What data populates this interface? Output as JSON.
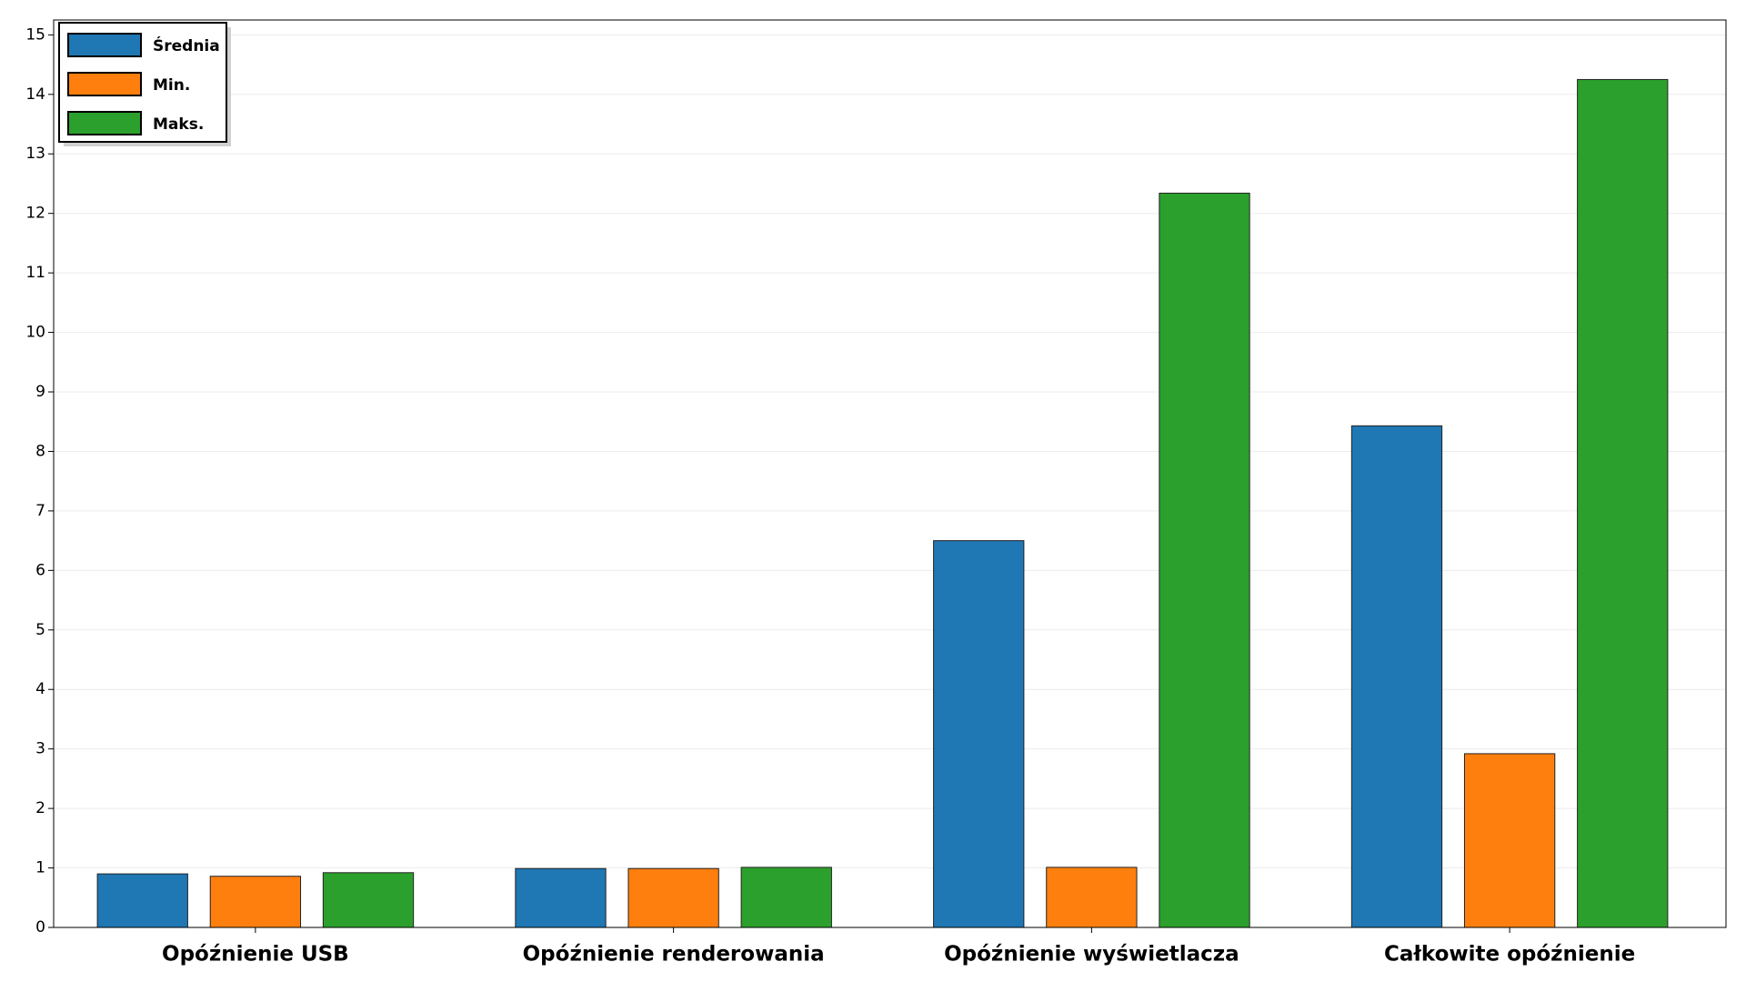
{
  "chart_data": {
    "type": "bar",
    "categories": [
      "Opóźnienie USB",
      "Opóźnienie renderowania",
      "Opóźnienie wyświetlacza",
      "Całkowite opóźnienie"
    ],
    "series": [
      {
        "name": "Średnia",
        "color": "#1f77b4",
        "values": [
          0.9,
          0.99,
          6.5,
          8.43
        ]
      },
      {
        "name": "Min.",
        "color": "#ff7f0e",
        "values": [
          0.86,
          0.99,
          1.01,
          2.92
        ]
      },
      {
        "name": "Maks.",
        "color": "#2ca02c",
        "values": [
          0.92,
          1.01,
          12.34,
          14.25
        ]
      }
    ],
    "ylim": [
      0,
      15.25
    ],
    "yticks": [
      0,
      1,
      2,
      3,
      4,
      5,
      6,
      7,
      8,
      9,
      10,
      11,
      12,
      13,
      14,
      15
    ],
    "grid": true,
    "legend": "upper-left"
  }
}
